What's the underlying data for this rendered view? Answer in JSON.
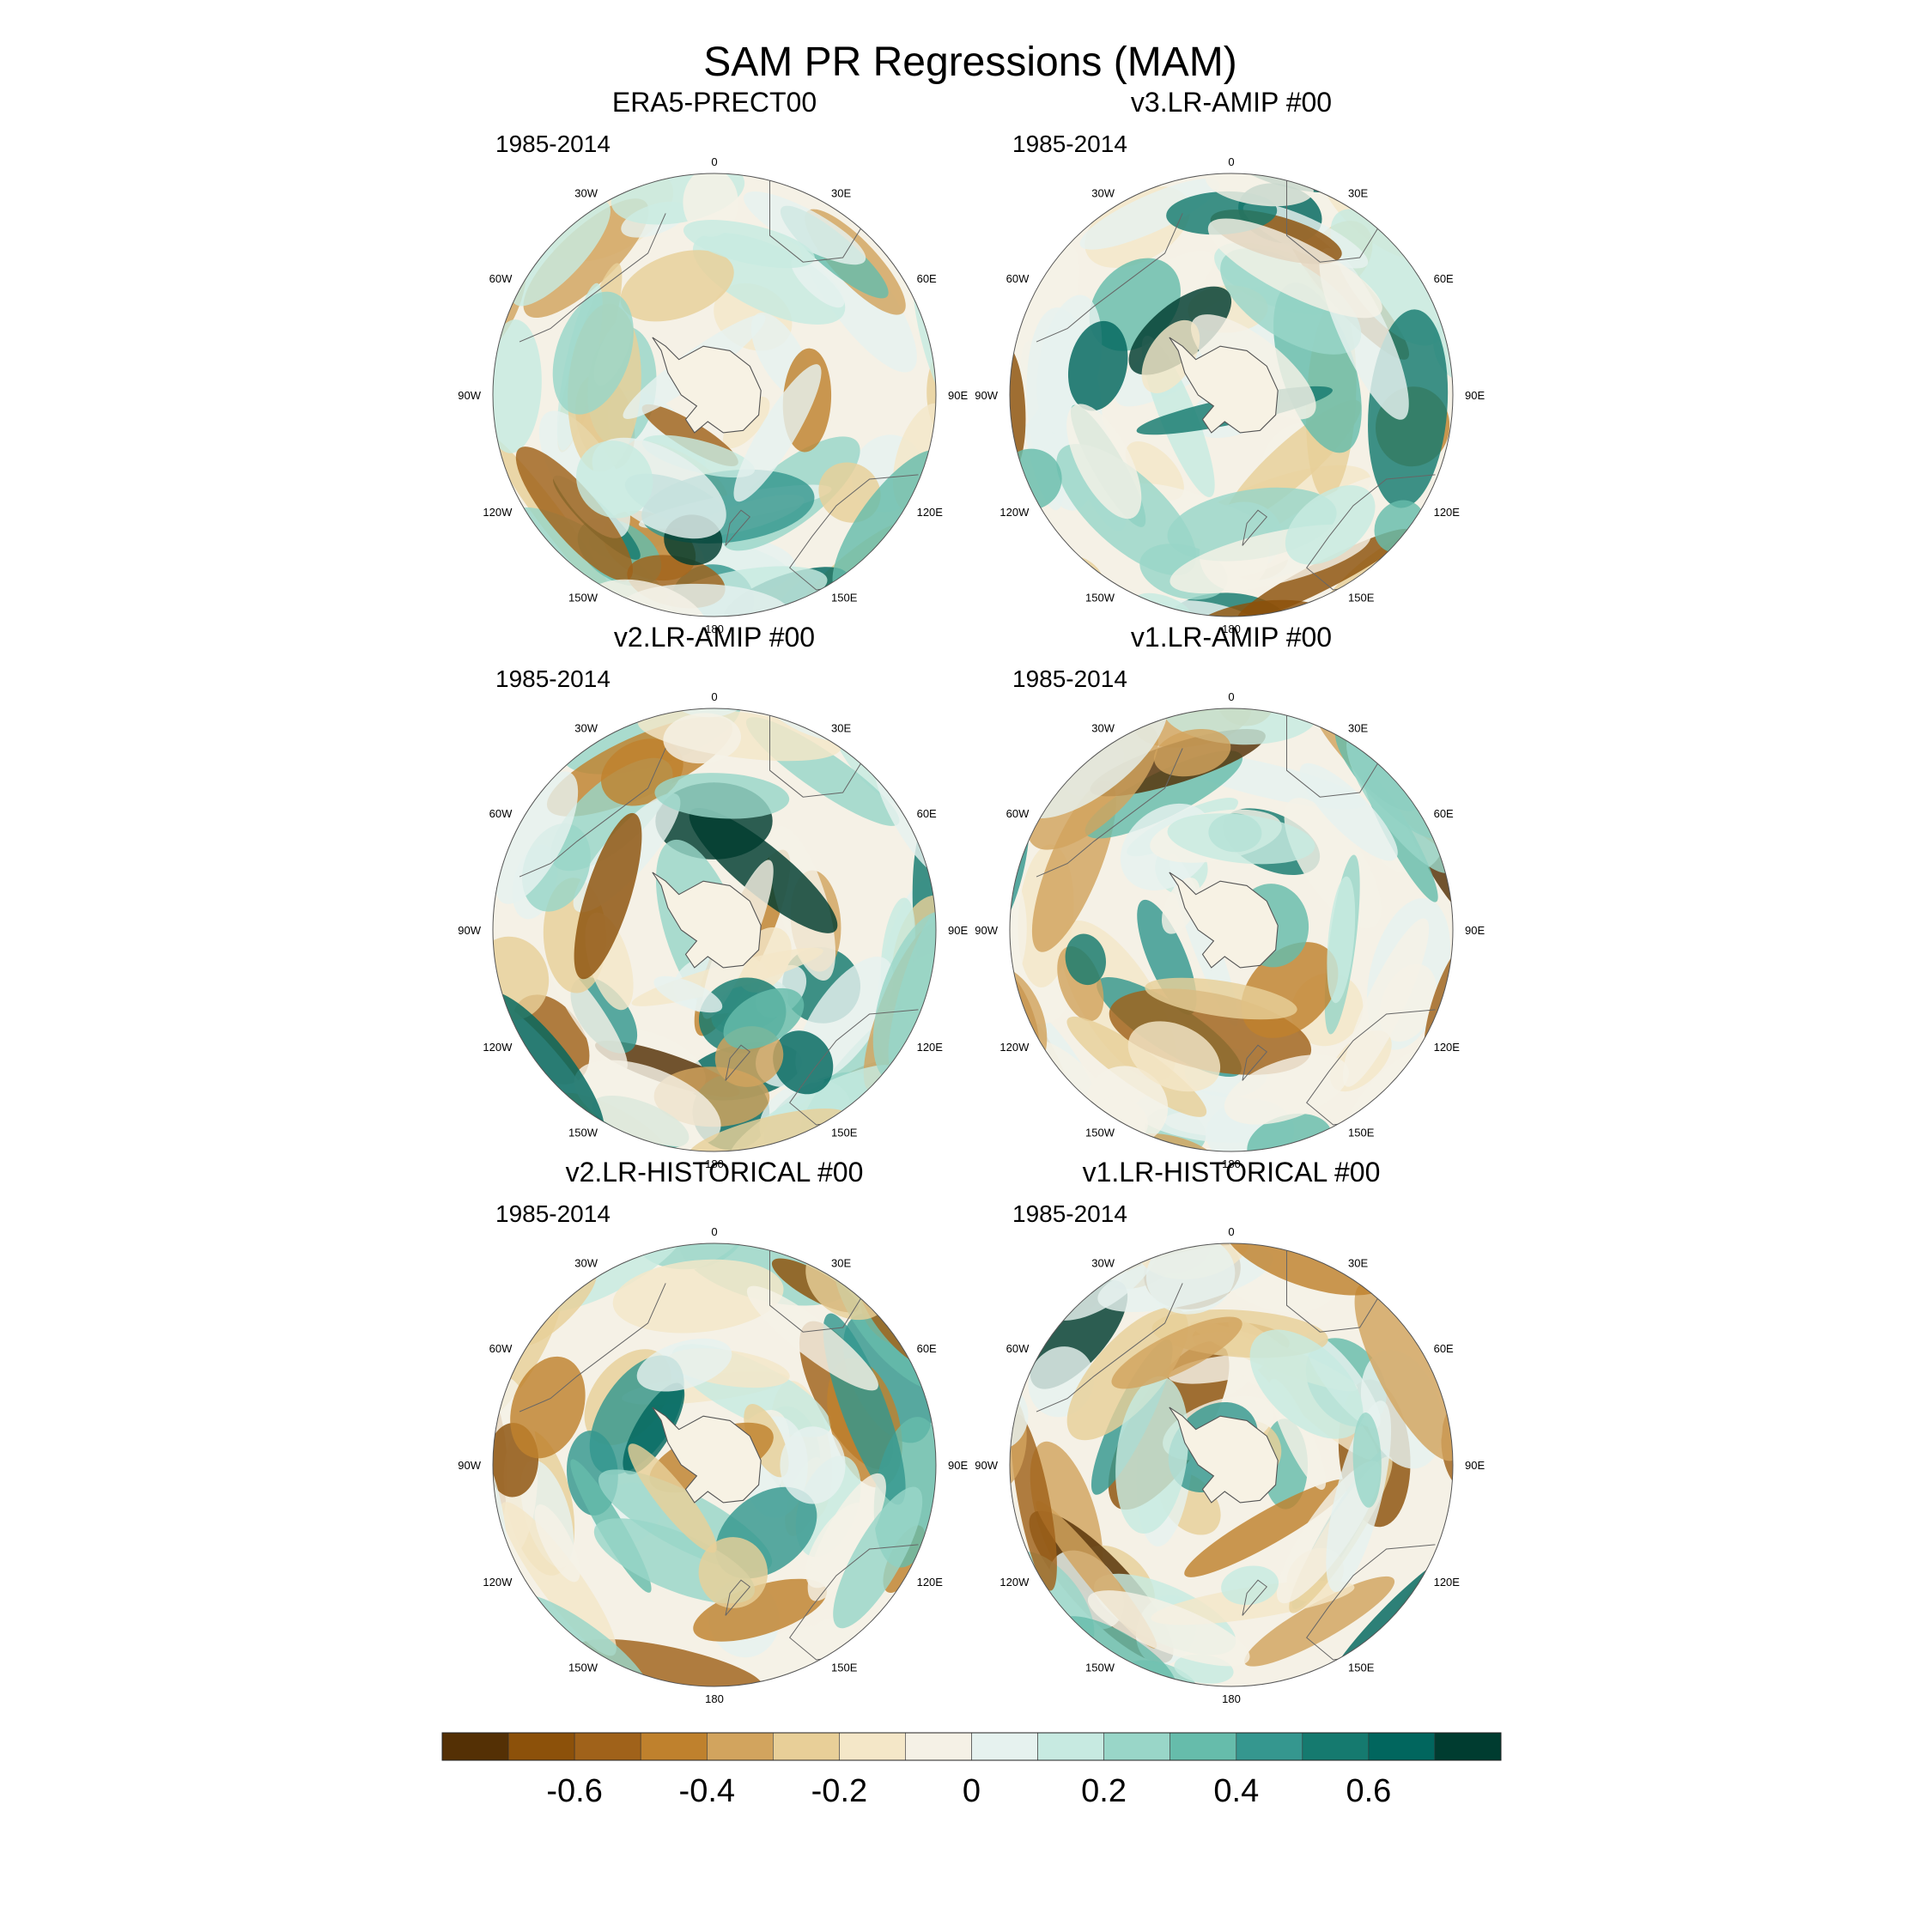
{
  "chart_data": {
    "type": "heatmap",
    "title": "SAM PR Regressions (MAM)",
    "projection": "south-polar-stereographic",
    "colormap": "brown-white-teal (BrBG)",
    "longitude_labels": [
      "0",
      "30E",
      "60E",
      "90E",
      "120E",
      "150E",
      "180",
      "150W",
      "120W",
      "90W",
      "60W",
      "30W"
    ],
    "panels": [
      {
        "title": "ERA5-PRECT00",
        "period": "1985-2014"
      },
      {
        "title": "v3.LR-AMIP  #00",
        "period": "1985-2014"
      },
      {
        "title": "v2.LR-AMIP  #00",
        "period": "1985-2014"
      },
      {
        "title": "v1.LR-AMIP  #00",
        "period": "1985-2014"
      },
      {
        "title": "v2.LR-HISTORICAL  #00",
        "period": "1985-2014"
      },
      {
        "title": "v1.LR-HISTORICAL  #00",
        "period": "1985-2014"
      }
    ],
    "colorbar": {
      "levels": [
        -0.8,
        -0.7,
        -0.6,
        -0.5,
        -0.4,
        -0.3,
        -0.2,
        -0.1,
        0,
        0.1,
        0.2,
        0.3,
        0.4,
        0.5,
        0.6,
        0.7,
        0.8
      ],
      "tick_values": [
        -0.6,
        -0.4,
        -0.2,
        0,
        0.2,
        0.4,
        0.6
      ],
      "tick_labels": [
        "-0.6",
        "-0.4",
        "-0.2",
        "0",
        "0.2",
        "0.4",
        "0.6"
      ],
      "colors": [
        "#543005",
        "#8c510a",
        "#a0621a",
        "#bf812d",
        "#d2a45e",
        "#e8cf98",
        "#f4e7c8",
        "#f5f1e6",
        "#e6f2ef",
        "#c7eae1",
        "#99d6c8",
        "#66bcab",
        "#35978f",
        "#157a6f",
        "#01665e",
        "#003c30"
      ]
    }
  }
}
